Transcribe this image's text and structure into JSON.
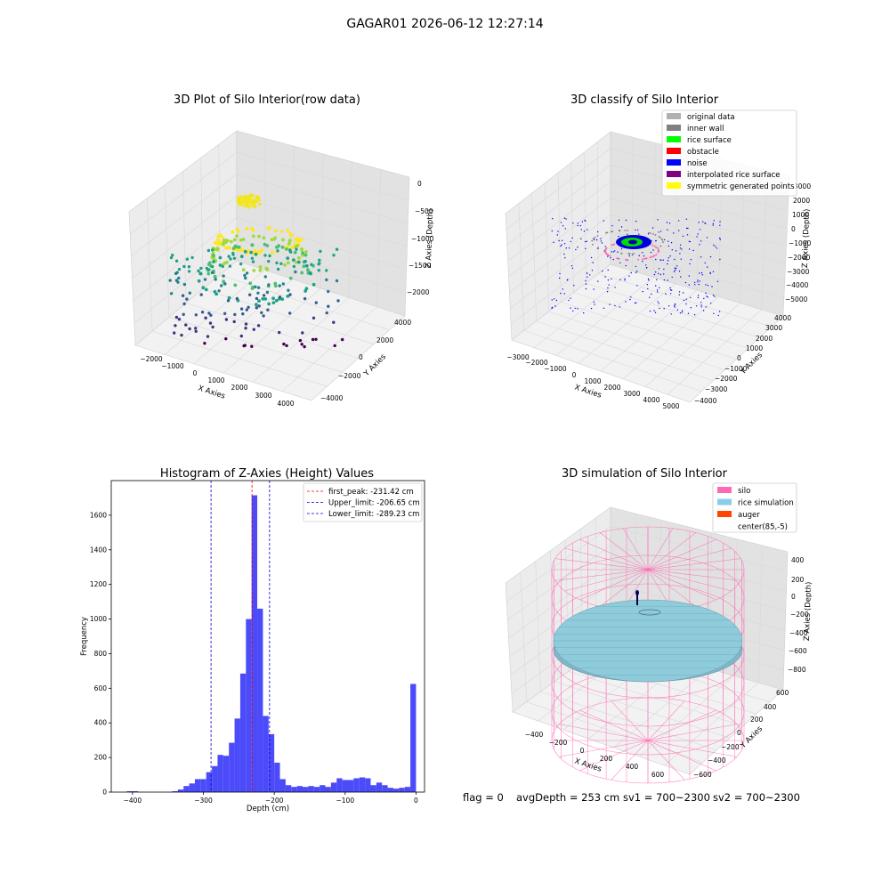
{
  "suptitle": "GAGAR01 2026-06-12 12:27:14",
  "footer": {
    "flag": "flag = 0",
    "avg_depth": "avgDepth = 253 cm",
    "sv1": "sv1 = 700~2300",
    "sv2": "sv2 = 700~2300"
  },
  "plot_raw": {
    "title": "3D Plot of Silo Interior(row data)",
    "xlabel": "X Axies",
    "ylabel": "Y Axies",
    "zlabel": "Z Axies (Depth)",
    "x_ticks": [
      "−2000",
      "−1000",
      "0",
      "1000",
      "2000",
      "3000",
      "4000"
    ],
    "y_ticks": [
      "4000",
      "2000",
      "0",
      "−2000",
      "−4000"
    ],
    "z_ticks": [
      "0",
      "−500",
      "−1000",
      "−1500",
      "−2000"
    ]
  },
  "plot_classify": {
    "title": "3D classify of Silo Interior",
    "xlabel": "X Axies",
    "ylabel": "Y Axies",
    "zlabel": "Z Axies (Depth)",
    "x_ticks": [
      "−3000",
      "−2000",
      "−1000",
      "0",
      "1000",
      "2000",
      "3000",
      "4000",
      "5000"
    ],
    "y_ticks": [
      "4000",
      "3000",
      "2000",
      "1000",
      "0",
      "−1000",
      "−2000",
      "−3000",
      "−4000"
    ],
    "z_ticks": [
      "3000",
      "2000",
      "1000",
      "0",
      "−1000",
      "−2000",
      "−3000",
      "−4000",
      "−5000"
    ],
    "legend": [
      {
        "label": "original data",
        "color": "#b0b0b0"
      },
      {
        "label": "inner wall",
        "color": "#808080"
      },
      {
        "label": "rice surface",
        "color": "#00ff00"
      },
      {
        "label": "obstacle",
        "color": "#ff0000"
      },
      {
        "label": "noise",
        "color": "#0000ff"
      },
      {
        "label": "interpolated rice surface",
        "color": "#800080"
      },
      {
        "label": "symmetric generated points",
        "color": "#ffff00"
      }
    ]
  },
  "plot_sim": {
    "title": "3D simulation of Silo Interior",
    "xlabel": "X Axies",
    "ylabel": "Y Axies",
    "zlabel": "Z Axies (Depth)",
    "x_ticks": [
      "−400",
      "−200",
      "0",
      "200",
      "400",
      "600"
    ],
    "y_ticks": [
      "600",
      "400",
      "200",
      "0",
      "−200",
      "−400",
      "−600"
    ],
    "z_ticks": [
      "400",
      "200",
      "0",
      "−200",
      "−400",
      "−600",
      "−800"
    ],
    "legend": [
      {
        "label": "silo",
        "color": "#ff69b4"
      },
      {
        "label": "rice simulation",
        "color": "#87ceeb"
      },
      {
        "label": "auger",
        "color": "#ff4500"
      },
      {
        "label": "center(85,-5)",
        "color": "#ffffff"
      }
    ]
  },
  "chart_data": [
    {
      "type": "scatter",
      "title": "3D Plot of Silo Interior(row data)",
      "xlabel": "X Axies",
      "ylabel": "Y Axies",
      "zlabel": "Z Axies (Depth)",
      "xlim": [
        -2500,
        4500
      ],
      "ylim": [
        -4500,
        4500
      ],
      "zlim": [
        -2300,
        100
      ]
    },
    {
      "type": "scatter",
      "title": "3D classify of Silo Interior",
      "xlabel": "X Axies",
      "ylabel": "Y Axies",
      "zlabel": "Z Axies (Depth)",
      "xlim": [
        -3000,
        5000
      ],
      "ylim": [
        -4000,
        4000
      ],
      "zlim": [
        -5000,
        3000
      ],
      "legend_loc": "upper right"
    },
    {
      "type": "bar",
      "title": "Histogram of Z-Axies (Height) Values",
      "xlabel": "Depth (cm)",
      "ylabel": "Frequency",
      "xlim": [
        -430,
        12
      ],
      "ylim": [
        0,
        1800
      ],
      "x_ticks": [
        -400,
        -300,
        -200,
        -100,
        0
      ],
      "y_ticks": [
        0,
        200,
        400,
        600,
        800,
        1000,
        1200,
        1400,
        1600
      ],
      "bin_width": 8,
      "bins": [
        {
          "x": -408,
          "v": 5
        },
        {
          "x": -400,
          "v": 5
        },
        {
          "x": -344,
          "v": 5
        },
        {
          "x": -336,
          "v": 15
        },
        {
          "x": -328,
          "v": 35
        },
        {
          "x": -320,
          "v": 50
        },
        {
          "x": -312,
          "v": 75
        },
        {
          "x": -304,
          "v": 75
        },
        {
          "x": -296,
          "v": 115
        },
        {
          "x": -288,
          "v": 150
        },
        {
          "x": -280,
          "v": 215
        },
        {
          "x": -272,
          "v": 210
        },
        {
          "x": -264,
          "v": 285
        },
        {
          "x": -256,
          "v": 425
        },
        {
          "x": -248,
          "v": 685
        },
        {
          "x": -240,
          "v": 1000
        },
        {
          "x": -232,
          "v": 1715
        },
        {
          "x": -224,
          "v": 1060
        },
        {
          "x": -216,
          "v": 440
        },
        {
          "x": -208,
          "v": 335
        },
        {
          "x": -200,
          "v": 170
        },
        {
          "x": -192,
          "v": 75
        },
        {
          "x": -184,
          "v": 40
        },
        {
          "x": -176,
          "v": 30
        },
        {
          "x": -168,
          "v": 35
        },
        {
          "x": -160,
          "v": 30
        },
        {
          "x": -152,
          "v": 35
        },
        {
          "x": -144,
          "v": 30
        },
        {
          "x": -136,
          "v": 40
        },
        {
          "x": -128,
          "v": 30
        },
        {
          "x": -120,
          "v": 55
        },
        {
          "x": -112,
          "v": 80
        },
        {
          "x": -104,
          "v": 70
        },
        {
          "x": -96,
          "v": 70
        },
        {
          "x": -88,
          "v": 80
        },
        {
          "x": -80,
          "v": 85
        },
        {
          "x": -72,
          "v": 80
        },
        {
          "x": -64,
          "v": 40
        },
        {
          "x": -56,
          "v": 55
        },
        {
          "x": -48,
          "v": 40
        },
        {
          "x": -40,
          "v": 25
        },
        {
          "x": -32,
          "v": 20
        },
        {
          "x": -24,
          "v": 25
        },
        {
          "x": -16,
          "v": 30
        },
        {
          "x": -8,
          "v": 625
        }
      ],
      "vlines": [
        {
          "label": "first_peak: -231.42 cm",
          "x": -231.42,
          "color": "#ff0000"
        },
        {
          "label": "Upper_limit: -206.65 cm",
          "x": -206.65,
          "color": "#0000cc"
        },
        {
          "label": "Lower_limit: -289.23 cm",
          "x": -289.23,
          "color": "#0000cc"
        }
      ],
      "bar_color": "#4b4bfa",
      "legend_loc": "upper right"
    },
    {
      "type": "scatter",
      "title": "3D simulation of Silo Interior",
      "xlabel": "X Axies",
      "ylabel": "Y Axies",
      "zlabel": "Z Axies (Depth)",
      "xlim": [
        -500,
        700
      ],
      "ylim": [
        -700,
        700
      ],
      "zlim": [
        -900,
        450
      ],
      "legend_loc": "upper right"
    }
  ]
}
